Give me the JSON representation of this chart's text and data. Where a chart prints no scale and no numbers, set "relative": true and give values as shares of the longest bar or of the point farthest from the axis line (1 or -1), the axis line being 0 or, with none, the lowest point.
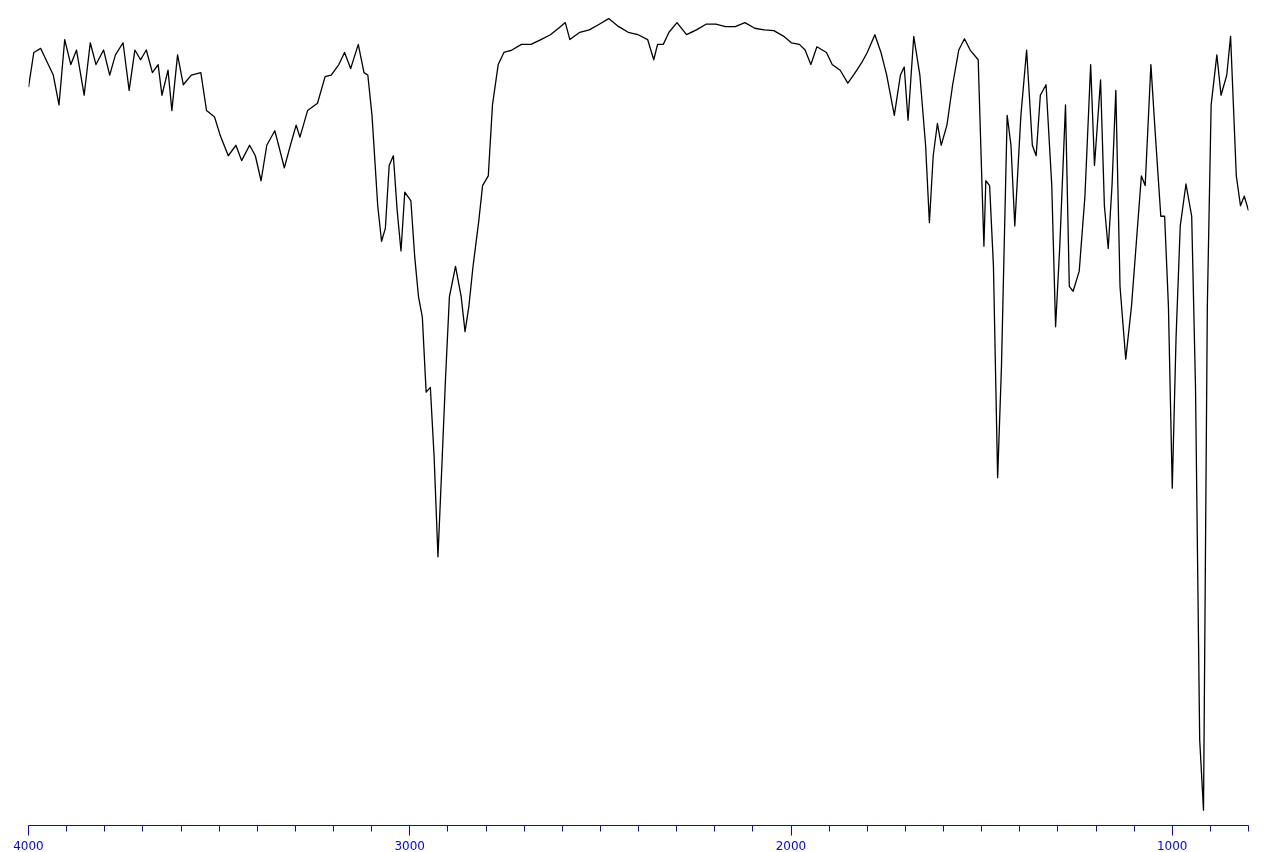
{
  "chart_data": {
    "type": "line",
    "relative": true,
    "grid": false,
    "marker": "none",
    "line_style": "solid",
    "xlim": [
      4000,
      800
    ],
    "xticks": [
      4000,
      {
        "value": 3900,
        "label": null
      },
      {
        "value": 3800,
        "label": null
      },
      {
        "value": 3700,
        "label": null
      },
      {
        "value": 3600,
        "label": null
      },
      {
        "value": 3500,
        "label": null
      },
      {
        "value": 3400,
        "label": null
      },
      {
        "value": 3300,
        "label": null
      },
      {
        "value": 3200,
        "label": null
      },
      {
        "value": 3100,
        "label": null
      },
      3000,
      {
        "value": 2900,
        "label": null
      },
      {
        "value": 2800,
        "label": null
      },
      {
        "value": 2700,
        "label": null
      },
      {
        "value": 2600,
        "label": null
      },
      {
        "value": 2500,
        "label": null
      },
      {
        "value": 2400,
        "label": null
      },
      {
        "value": 2300,
        "label": null
      },
      {
        "value": 2200,
        "label": null
      },
      {
        "value": 2100,
        "label": null
      },
      2000,
      {
        "value": 1900,
        "label": null
      },
      {
        "value": 1800,
        "label": null
      },
      {
        "value": 1700,
        "label": null
      },
      {
        "value": 1600,
        "label": null
      },
      {
        "value": 1500,
        "label": null
      },
      {
        "value": 1400,
        "label": null
      },
      {
        "value": 1300,
        "label": null
      },
      {
        "value": 1200,
        "label": null
      },
      {
        "value": 1100,
        "label": null
      },
      1000,
      {
        "value": 900,
        "label": null
      },
      {
        "value": 800,
        "label": null
      }
    ],
    "series": [
      {
        "color": "#000000",
        "x": [
          4000,
          3986,
          3968,
          3950,
          3935,
          3920,
          3905,
          3889,
          3874,
          3854,
          3838,
          3823,
          3803,
          3787,
          3772,
          3752,
          3736,
          3721,
          3706,
          3691,
          3675,
          3660,
          3650,
          3634,
          3624,
          3609,
          3594,
          3573,
          3548,
          3533,
          3512,
          3497,
          3476,
          3456,
          3441,
          3420,
          3405,
          3390,
          3375,
          3354,
          3344,
          3329,
          3313,
          3298,
          3288,
          3268,
          3242,
          3222,
          3206,
          3186,
          3171,
          3155,
          3135,
          3120,
          3110,
          3099,
          3084,
          3074,
          3064,
          3054,
          3043,
          3033,
          3023,
          3013,
          2997,
          2987,
          2977,
          2967,
          2957,
          2946,
          2936,
          2926,
          2916,
          2906,
          2896,
          2880,
          2865,
          2855,
          2845,
          2834,
          2819,
          2809,
          2794,
          2783,
          2768,
          2753,
          2732,
          2707,
          2682,
          2656,
          2631,
          2605,
          2592,
          2580,
          2554,
          2529,
          2503,
          2478,
          2452,
          2427,
          2401,
          2376,
          2360,
          2350,
          2335,
          2320,
          2299,
          2274,
          2248,
          2223,
          2197,
          2172,
          2146,
          2121,
          2095,
          2070,
          2045,
          2019,
          1999,
          1978,
          1963,
          1948,
          1932,
          1907,
          1892,
          1871,
          1851,
          1836,
          1815,
          1800,
          1780,
          1764,
          1749,
          1729,
          1713,
          1703,
          1693,
          1678,
          1662,
          1647,
          1637,
          1627,
          1616,
          1606,
          1591,
          1576,
          1560,
          1545,
          1530,
          1509,
          1499,
          1494,
          1489,
          1479,
          1469,
          1458,
          1448,
          1433,
          1423,
          1413,
          1397,
          1382,
          1367,
          1357,
          1346,
          1331,
          1316,
          1306,
          1295,
          1280,
          1270,
          1260,
          1244,
          1229,
          1214,
          1204,
          1188,
          1178,
          1168,
          1158,
          1148,
          1137,
          1122,
          1107,
          1097,
          1081,
          1071,
          1056,
          1046,
          1030,
          1020,
          1010,
          1000,
          990,
          979,
          964,
          949,
          939,
          928,
          918,
          908,
          898,
          883,
          872,
          857,
          847,
          832,
          821,
          811,
          800
        ],
        "values": [
          0.915,
          0.958,
          0.963,
          0.945,
          0.93,
          0.893,
          0.974,
          0.943,
          0.961,
          0.905,
          0.97,
          0.943,
          0.961,
          0.93,
          0.955,
          0.97,
          0.911,
          0.961,
          0.949,
          0.961,
          0.933,
          0.943,
          0.905,
          0.936,
          0.886,
          0.955,
          0.918,
          0.93,
          0.933,
          0.886,
          0.878,
          0.855,
          0.83,
          0.843,
          0.824,
          0.843,
          0.83,
          0.799,
          0.843,
          0.861,
          0.843,
          0.815,
          0.843,
          0.868,
          0.853,
          0.886,
          0.895,
          0.928,
          0.93,
          0.943,
          0.958,
          0.938,
          0.968,
          0.933,
          0.93,
          0.88,
          0.768,
          0.724,
          0.74,
          0.818,
          0.83,
          0.762,
          0.712,
          0.785,
          0.774,
          0.705,
          0.655,
          0.63,
          0.537,
          0.543,
          0.456,
          0.333,
          0.443,
          0.556,
          0.655,
          0.693,
          0.655,
          0.612,
          0.643,
          0.693,
          0.749,
          0.793,
          0.805,
          0.893,
          0.943,
          0.958,
          0.961,
          0.968,
          0.968,
          0.974,
          0.98,
          0.99,
          0.995,
          0.974,
          0.983,
          0.986,
          0.993,
          1.0,
          0.99,
          0.983,
          0.98,
          0.974,
          0.949,
          0.968,
          0.968,
          0.983,
          0.995,
          0.98,
          0.986,
          0.993,
          0.993,
          0.99,
          0.99,
          0.995,
          0.988,
          0.986,
          0.985,
          0.978,
          0.97,
          0.968,
          0.961,
          0.943,
          0.965,
          0.958,
          0.943,
          0.936,
          0.92,
          0.93,
          0.945,
          0.958,
          0.98,
          0.958,
          0.93,
          0.88,
          0.93,
          0.94,
          0.874,
          0.978,
          0.93,
          0.843,
          0.747,
          0.83,
          0.87,
          0.843,
          0.868,
          0.918,
          0.961,
          0.975,
          0.961,
          0.949,
          0.793,
          0.718,
          0.799,
          0.793,
          0.693,
          0.431,
          0.568,
          0.88,
          0.843,
          0.743,
          0.88,
          0.961,
          0.843,
          0.83,
          0.905,
          0.918,
          0.793,
          0.618,
          0.718,
          0.893,
          0.668,
          0.662,
          0.687,
          0.78,
          0.943,
          0.818,
          0.924,
          0.768,
          0.715,
          0.793,
          0.911,
          0.668,
          0.578,
          0.643,
          0.705,
          0.805,
          0.793,
          0.943,
          0.868,
          0.755,
          0.755,
          0.643,
          0.418,
          0.605,
          0.743,
          0.795,
          0.755,
          0.543,
          0.106,
          0.019,
          0.643,
          0.893,
          0.955,
          0.905,
          0.93,
          0.978,
          0.805,
          0.768,
          0.78,
          0.762
        ]
      }
    ]
  }
}
